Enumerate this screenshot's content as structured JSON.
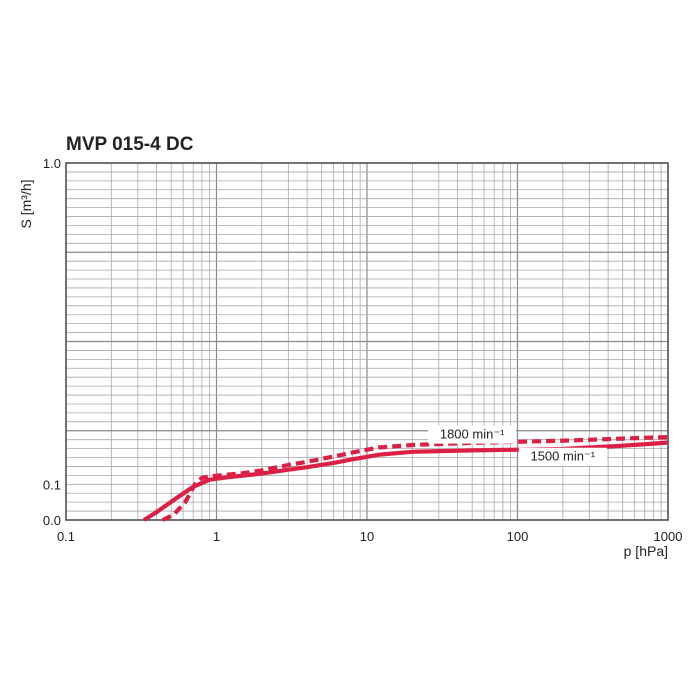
{
  "chart_data": {
    "type": "line",
    "title": "MVP 015-4 DC",
    "xlabel": "p [hPa]",
    "ylabel": "S  [m³/h]",
    "x_scale": "log",
    "xlim": [
      0.1,
      1000
    ],
    "ylim": [
      0.0,
      1.0
    ],
    "x_ticks": [
      {
        "value": 0.1,
        "label": "0.1"
      },
      {
        "value": 1,
        "label": "1"
      },
      {
        "value": 10,
        "label": "10"
      },
      {
        "value": 100,
        "label": "100"
      },
      {
        "value": 1000,
        "label": "1000"
      }
    ],
    "y_ticks": [
      {
        "value": 0.0,
        "label": "0.0"
      },
      {
        "value": 0.1,
        "label": "0.1"
      },
      {
        "value": 1.0,
        "label": "1.0"
      }
    ],
    "grid": true,
    "line_color": "#dc1f44",
    "series": [
      {
        "name": "1800 min⁻¹",
        "style": "dashed",
        "points": [
          [
            0.44,
            0.0
          ],
          [
            0.52,
            0.015
          ],
          [
            0.62,
            0.05
          ],
          [
            0.72,
            0.1
          ],
          [
            0.8,
            0.118
          ],
          [
            0.9,
            0.122
          ],
          [
            1.0,
            0.124
          ],
          [
            1.5,
            0.131
          ],
          [
            2.0,
            0.139
          ],
          [
            3.0,
            0.154
          ],
          [
            4.0,
            0.163
          ],
          [
            6.0,
            0.178
          ],
          [
            8.0,
            0.189
          ],
          [
            10.0,
            0.197
          ],
          [
            12.0,
            0.203
          ],
          [
            20.0,
            0.21
          ],
          [
            30.0,
            0.213
          ],
          [
            50.0,
            0.216
          ],
          [
            100.0,
            0.219
          ],
          [
            200.0,
            0.222
          ],
          [
            500.0,
            0.228
          ],
          [
            800.0,
            0.231
          ],
          [
            1000.0,
            0.232
          ]
        ]
      },
      {
        "name": "1500 min⁻¹",
        "style": "solid",
        "points": [
          [
            0.33,
            0.0
          ],
          [
            0.4,
            0.022
          ],
          [
            0.55,
            0.063
          ],
          [
            0.7,
            0.093
          ],
          [
            0.9,
            0.113
          ],
          [
            1.2,
            0.12
          ],
          [
            2.0,
            0.13
          ],
          [
            3.0,
            0.141
          ],
          [
            4.0,
            0.148
          ],
          [
            6.0,
            0.16
          ],
          [
            8.0,
            0.17
          ],
          [
            10.0,
            0.177
          ],
          [
            12.0,
            0.183
          ],
          [
            20.0,
            0.191
          ],
          [
            30.0,
            0.193
          ],
          [
            50.0,
            0.195
          ],
          [
            100.0,
            0.197
          ],
          [
            200.0,
            0.199
          ],
          [
            300.0,
            0.203
          ],
          [
            500.0,
            0.208
          ],
          [
            800.0,
            0.214
          ],
          [
            1000.0,
            0.217
          ]
        ]
      }
    ]
  }
}
